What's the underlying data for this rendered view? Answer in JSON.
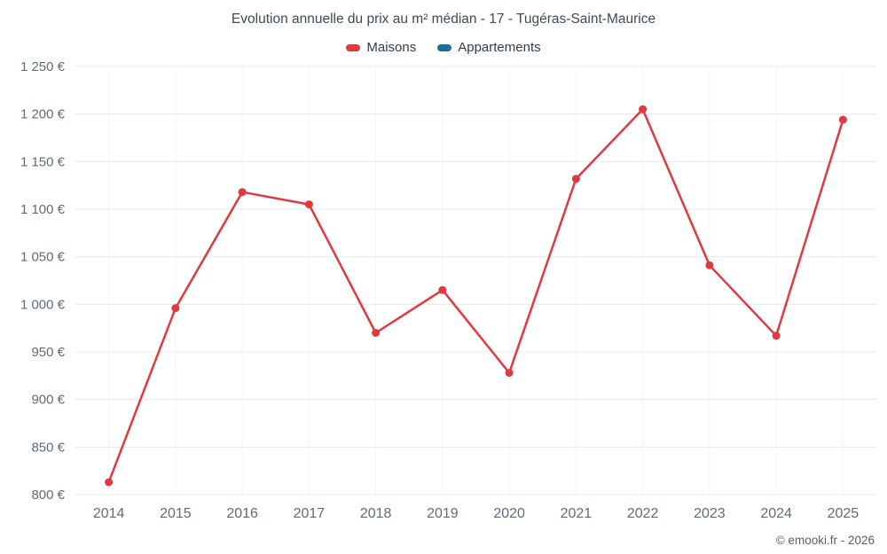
{
  "chart_data": {
    "type": "line",
    "title": "Evolution annuelle du prix au m² médian - 17 - Tugéras-Saint-Maurice",
    "categories": [
      "2014",
      "2015",
      "2016",
      "2017",
      "2018",
      "2019",
      "2020",
      "2021",
      "2022",
      "2023",
      "2024",
      "2025"
    ],
    "series": [
      {
        "name": "Maisons",
        "color": "#e0393f",
        "values": [
          813,
          996,
          1118,
          1105,
          970,
          1015,
          928,
          1132,
          1205,
          1041,
          967,
          1194
        ]
      },
      {
        "name": "Appartements",
        "color": "#1a6f9c",
        "values": []
      }
    ],
    "ylim": [
      800,
      1250
    ],
    "ytick_step": 50,
    "y_unit": "€",
    "xlabel": "",
    "ylabel": "",
    "grid": true,
    "legend_position": "top"
  },
  "footer": {
    "copyright": "© emooki.fr - 2026"
  }
}
